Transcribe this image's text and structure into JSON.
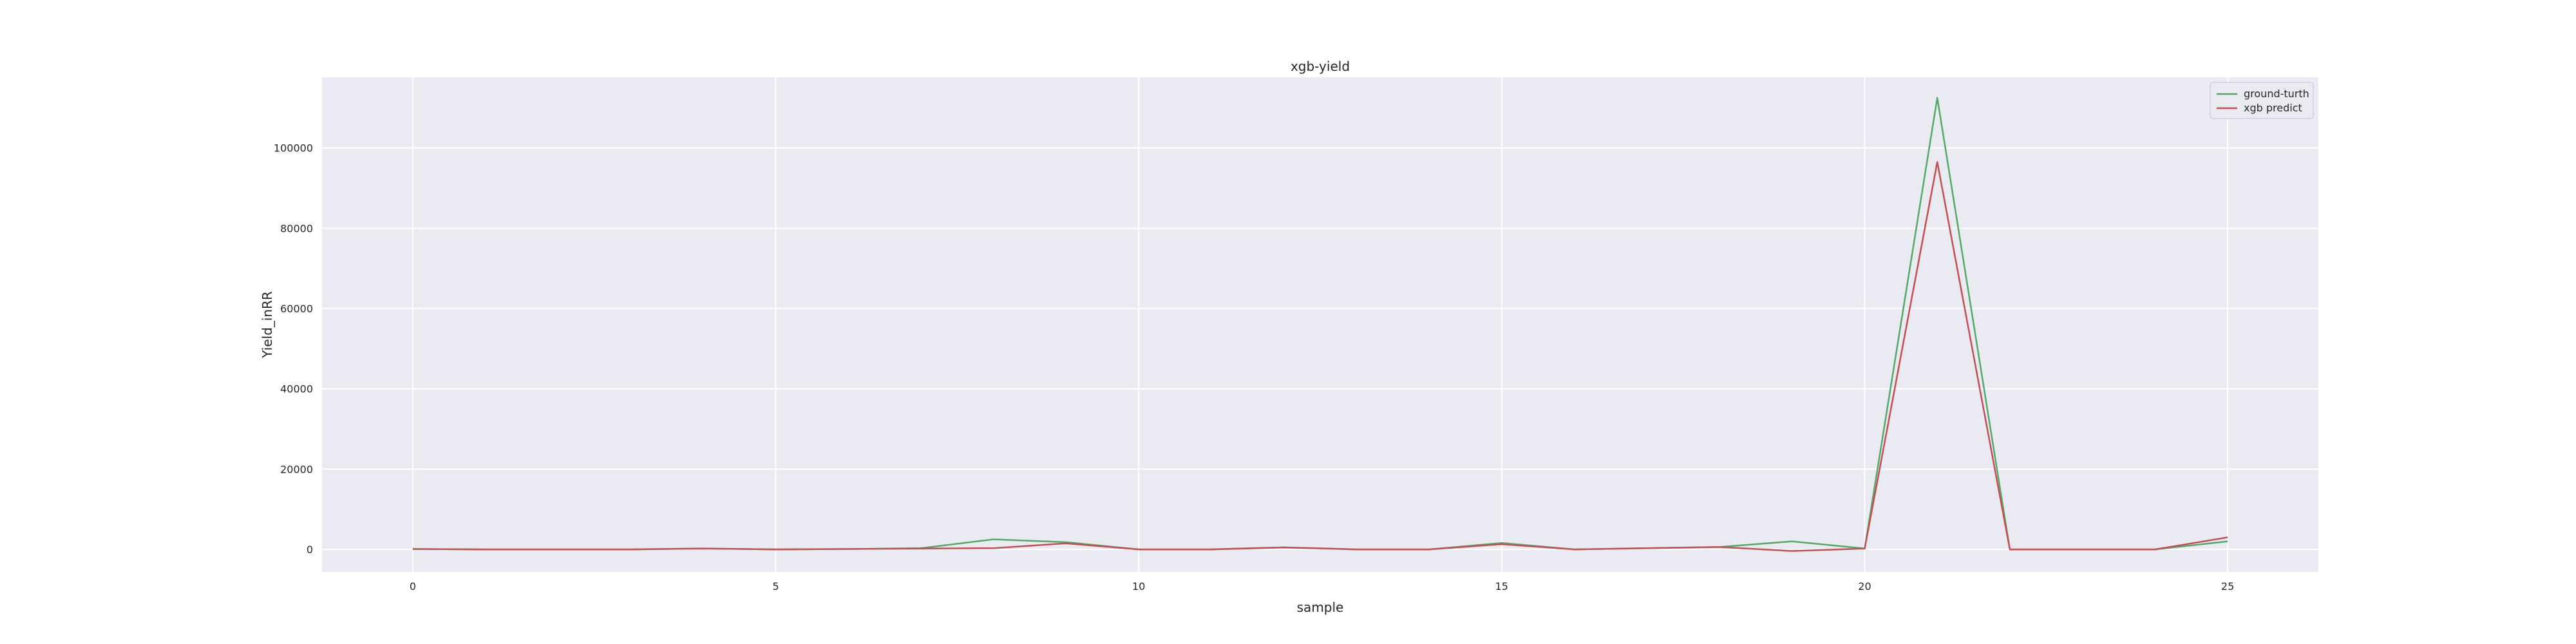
{
  "chart_data": {
    "type": "line",
    "title": "xgb-yield",
    "xlabel": "sample",
    "ylabel": "Yield_inRR",
    "xlim": [
      -1.25,
      26.25
    ],
    "ylim": [
      -5600,
      117600
    ],
    "xticks": [
      0,
      5,
      10,
      15,
      20,
      25
    ],
    "yticks": [
      0,
      20000,
      40000,
      60000,
      80000,
      100000
    ],
    "grid": true,
    "legend_position": "top-right",
    "x": [
      0,
      1,
      2,
      3,
      4,
      5,
      6,
      7,
      8,
      9,
      10,
      11,
      12,
      13,
      14,
      15,
      16,
      17,
      18,
      19,
      20,
      21,
      22,
      23,
      24,
      25
    ],
    "series": [
      {
        "name": "ground-turth",
        "color": "#55a868",
        "values": [
          100,
          0,
          0,
          0,
          200,
          0,
          100,
          300,
          2500,
          1800,
          0,
          0,
          500,
          0,
          0,
          1600,
          0,
          300,
          600,
          2000,
          200,
          112500,
          0,
          0,
          0,
          2000
        ]
      },
      {
        "name": "xgb predict",
        "color": "#c44e52",
        "values": [
          100,
          0,
          0,
          0,
          200,
          0,
          100,
          200,
          300,
          1500,
          0,
          0,
          500,
          0,
          0,
          1300,
          0,
          300,
          600,
          -400,
          200,
          96500,
          0,
          0,
          0,
          3000
        ]
      }
    ],
    "colors": {
      "plot_background": "#eaeaf2",
      "grid": "#ffffff"
    }
  }
}
